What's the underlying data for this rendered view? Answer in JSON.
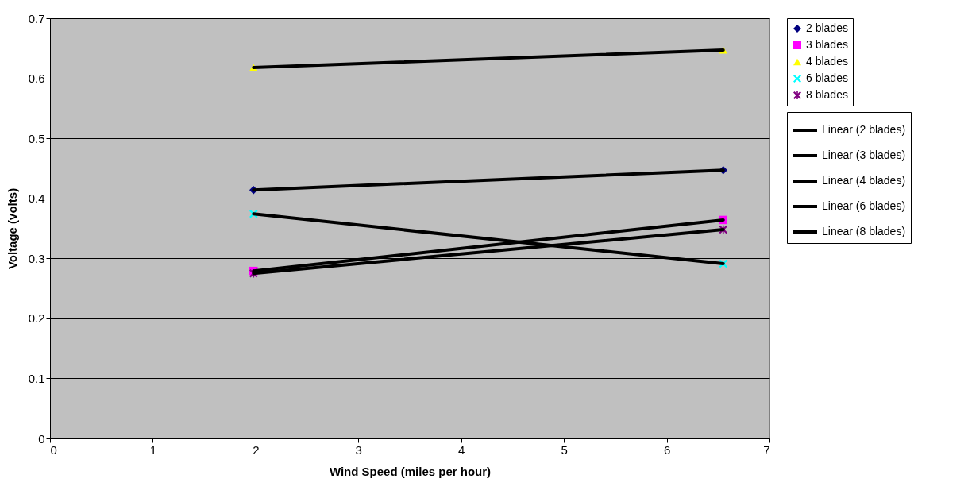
{
  "chart_data": {
    "type": "scatter",
    "xlabel": "Wind Speed (miles per hour)",
    "ylabel": "Voltage (volts)",
    "x": [
      1.98,
      6.55
    ],
    "xlim": [
      0,
      7
    ],
    "xticks": [
      0,
      1,
      2,
      3,
      4,
      5,
      6,
      7
    ],
    "ylim": [
      0,
      0.7
    ],
    "yticks": [
      0,
      0.1,
      0.2,
      0.3,
      0.4,
      0.5,
      0.6,
      0.7
    ],
    "grid": "y",
    "legend": "right",
    "series": [
      {
        "name": "2 blades",
        "color": "#000080",
        "marker": "diamond",
        "values": [
          0.414,
          0.447
        ]
      },
      {
        "name": "3 blades",
        "color": "#ff00ff",
        "marker": "square",
        "values": [
          0.279,
          0.364
        ]
      },
      {
        "name": "4 blades",
        "color": "#ffff00",
        "marker": "triangle",
        "values": [
          0.618,
          0.647
        ]
      },
      {
        "name": "6 blades",
        "color": "#00ffff",
        "marker": "cross",
        "values": [
          0.374,
          0.291
        ]
      },
      {
        "name": "8 blades",
        "color": "#800080",
        "marker": "star",
        "values": [
          0.275,
          0.348
        ]
      },
      {
        "name": "Linear (2 blades)",
        "type": "line",
        "color": "#000000",
        "values": [
          0.414,
          0.447
        ]
      },
      {
        "name": "Linear (3 blades)",
        "type": "line",
        "color": "#000000",
        "values": [
          0.279,
          0.364
        ]
      },
      {
        "name": "Linear (4 blades)",
        "type": "line",
        "color": "#000000",
        "values": [
          0.618,
          0.647
        ]
      },
      {
        "name": "Linear (6 blades)",
        "type": "line",
        "color": "#000000",
        "values": [
          0.374,
          0.291
        ]
      },
      {
        "name": "Linear (8 blades)",
        "type": "line",
        "color": "#000000",
        "values": [
          0.275,
          0.348
        ]
      }
    ]
  }
}
